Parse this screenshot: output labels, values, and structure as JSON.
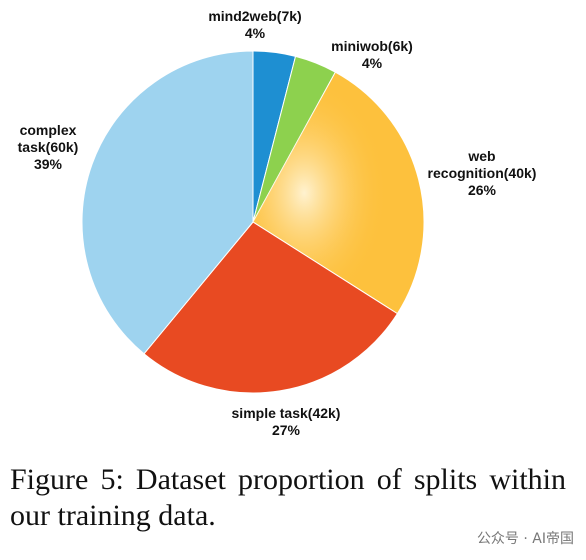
{
  "chart_data": {
    "type": "pie",
    "categories": [
      "mind2web(7k)",
      "miniwob(6k)",
      "web recognition(40k)",
      "simple task(42k)",
      "complex task(60k)"
    ],
    "values": [
      4,
      4,
      26,
      27,
      39
    ],
    "value_labels": [
      "4%",
      "4%",
      "26%",
      "27%",
      "39%"
    ],
    "colors": [
      "#1e8fd2",
      "#8dd14e",
      "#fdc13d",
      "#e84a22",
      "#9ed3ef"
    ]
  },
  "caption": "Figure 5: Dataset proportion of splits within our training data.",
  "watermark": "公众号 · AI帝国"
}
